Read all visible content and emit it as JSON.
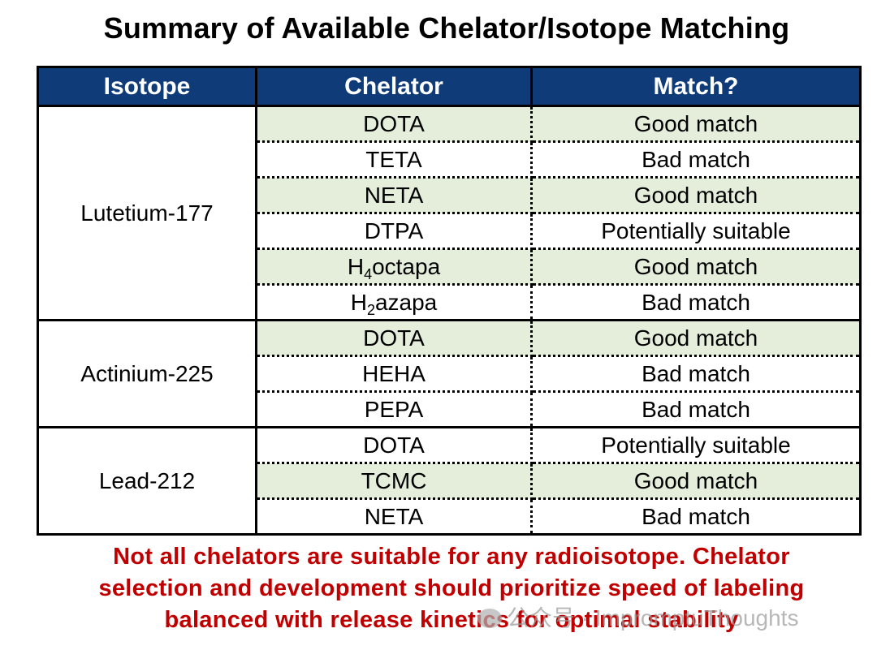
{
  "title": "Summary of Available Chelator/Isotope Matching",
  "table": {
    "headers": [
      "Isotope",
      "Chelator",
      "Match?"
    ],
    "groups": [
      {
        "isotope": "Lutetium-177",
        "rows": [
          {
            "chelator": "DOTA",
            "match": "Good match"
          },
          {
            "chelator": "TETA",
            "match": "Bad match"
          },
          {
            "chelator": "NETA",
            "match": "Good match"
          },
          {
            "chelator": "DTPA",
            "match": "Potentially suitable"
          },
          {
            "chelator_base": "H",
            "chelator_sub": "4",
            "chelator_rest": "octapa",
            "match": "Good match"
          },
          {
            "chelator_base": "H",
            "chelator_sub": "2",
            "chelator_rest": "azapa",
            "match": "Bad match"
          }
        ]
      },
      {
        "isotope": "Actinium-225",
        "rows": [
          {
            "chelator": "DOTA",
            "match": "Good match"
          },
          {
            "chelator": "HEHA",
            "match": "Bad match"
          },
          {
            "chelator": "PEPA",
            "match": "Bad match"
          }
        ]
      },
      {
        "isotope": "Lead-212",
        "rows": [
          {
            "chelator": "DOTA",
            "match": "Potentially suitable"
          },
          {
            "chelator": "TCMC",
            "match": "Good match"
          },
          {
            "chelator": "NETA",
            "match": "Bad match"
          }
        ]
      }
    ]
  },
  "note_lines": [
    "Not all chelators are suitable for any radioisotope. Chelator",
    "selection and development should prioritize speed of labeling",
    "balanced with release kinetics for optimal stability"
  ],
  "watermark": "公众号 · ImpromptuThoughts",
  "colors": {
    "header_bg": "#0f3c78",
    "row_green": "#e4eedb",
    "note_red": "#c00000"
  }
}
